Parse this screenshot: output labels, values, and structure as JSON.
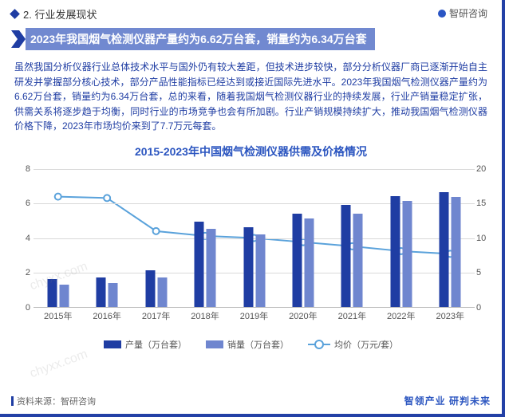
{
  "section_label": "2. 行业发展现状",
  "brand_top": "智研咨询",
  "title": "2023年我国烟气检测仪器产量约为6.62万台套，销量约为6.34万台套",
  "paragraph": "虽然我国分析仪器行业总体技术水平与国外仍有较大差距，但技术进步较快，部分分析仪器厂商已逐渐开始自主研发并掌握部分核心技术，部分产品性能指标已经达到或接近国际先进水平。2023年我国烟气检测仪器产量约为6.62万台套，销量约为6.34万台套，总的来看，随着我国烟气检测仪器行业的持续发展，行业产销量稳定扩张，供需关系将逐步趋于均衡，同时行业的市场竞争也会有所加剧。行业产销规模持续扩大，推动我国烟气检测仪器价格下降，2023年市场均价来到了7.7万元每套。",
  "chart": {
    "title": "2015-2023年中国烟气检测仪器供需及价格情况",
    "categories": [
      "2015年",
      "2016年",
      "2017年",
      "2018年",
      "2019年",
      "2020年",
      "2021年",
      "2022年",
      "2023年"
    ],
    "series_production": [
      1.6,
      1.7,
      2.1,
      4.9,
      4.6,
      5.4,
      5.9,
      6.4,
      6.62
    ],
    "series_sales": [
      1.3,
      1.4,
      1.7,
      4.5,
      4.2,
      5.1,
      5.4,
      6.1,
      6.34
    ],
    "series_price": [
      16.0,
      15.8,
      11.0,
      10.3,
      10.0,
      9.4,
      8.8,
      8.1,
      7.7
    ],
    "left_axis": {
      "min": 0,
      "max": 8,
      "step": 2,
      "ticks": [
        0,
        2,
        4,
        6,
        8
      ]
    },
    "right_axis": {
      "min": 0,
      "max": 20,
      "step": 5,
      "ticks": [
        0,
        5,
        10,
        15,
        20
      ]
    },
    "colors": {
      "production": "#1f3da3",
      "sales": "#6f86cf",
      "price_line": "#5aa2db",
      "grid": "#d9d9d9",
      "background": "#ffffff"
    },
    "legend": {
      "production": "产量（万台套）",
      "sales": "销量（万台套）",
      "price": "均价（万元/套）"
    }
  },
  "source_label": "资料来源：智研咨询",
  "footer_brand": "智领产业 研判未来",
  "watermark": "chyxx.com"
}
